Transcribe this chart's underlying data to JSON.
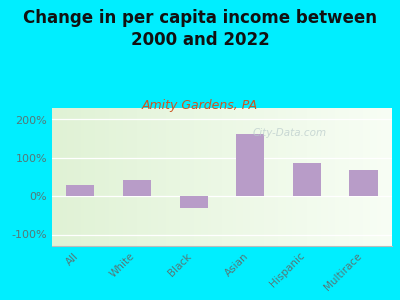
{
  "title": "Change in per capita income between\n2000 and 2022",
  "subtitle": "Amity Gardens, PA",
  "categories": [
    "All",
    "White",
    "Black",
    "Asian",
    "Hispanic",
    "Multirace"
  ],
  "values": [
    30,
    42,
    -30,
    163,
    87,
    67
  ],
  "bar_color": "#b89cc8",
  "title_fontsize": 12,
  "subtitle_fontsize": 9,
  "subtitle_color": "#cc5522",
  "tick_color": "#557777",
  "background_outer": "#00eeff",
  "ylim": [
    -130,
    230
  ],
  "yticks": [
    -100,
    0,
    100,
    200
  ],
  "ytick_labels": [
    "-100%",
    "0%",
    "100%",
    "200%"
  ],
  "watermark": "City-Data.com",
  "bg_color_top": "#f0faf0",
  "bg_color_bottom": "#e0f0d8"
}
